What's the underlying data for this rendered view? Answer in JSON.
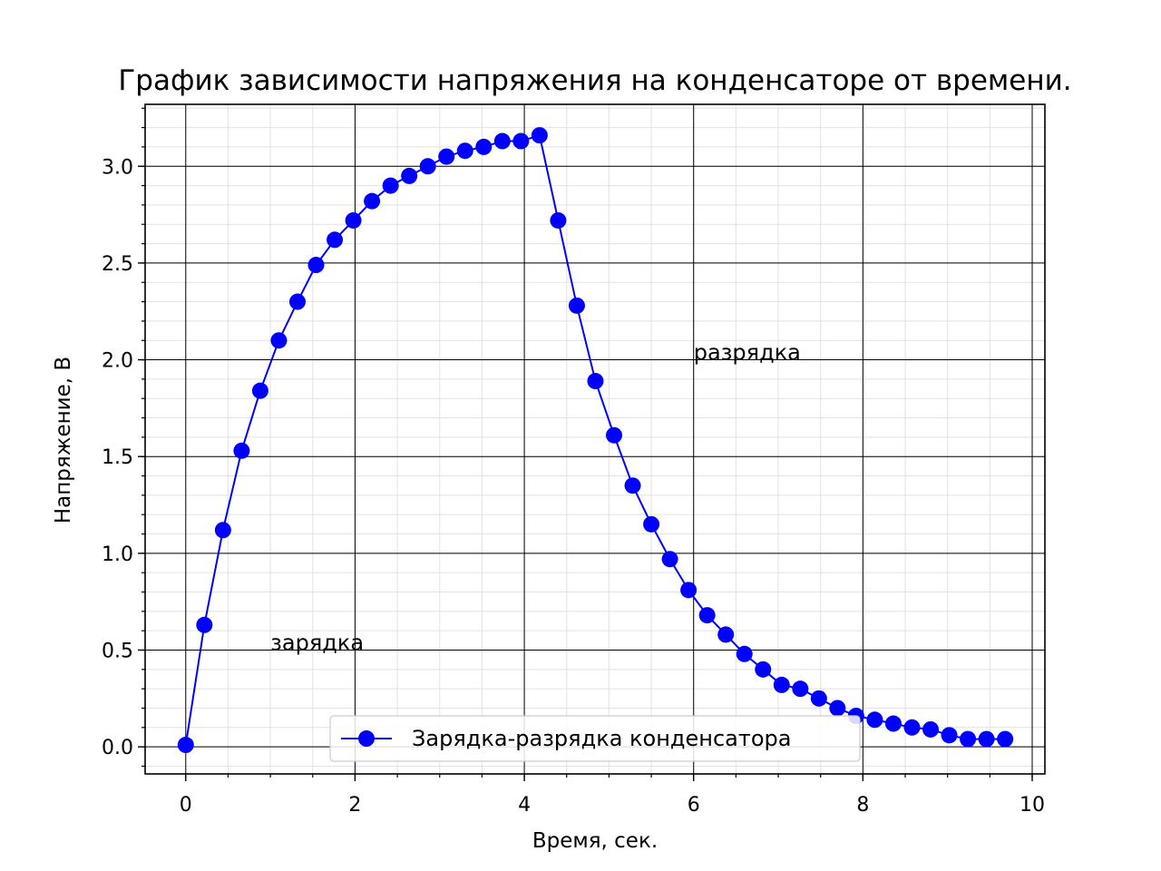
{
  "chart_data": {
    "type": "line",
    "title": "График зависимости напряжения на конденсаторе от времени.",
    "xlabel": "Время, сек.",
    "ylabel": "Напряжение, В",
    "xlim": [
      -0.48,
      10.15
    ],
    "ylim": [
      -0.14,
      3.32
    ],
    "xticks": [
      0,
      2,
      4,
      6,
      8,
      10
    ],
    "xtick_labels": [
      "0",
      "2",
      "4",
      "6",
      "8",
      "10"
    ],
    "yticks": [
      0.0,
      0.5,
      1.0,
      1.5,
      2.0,
      2.5,
      3.0
    ],
    "ytick_labels": [
      "0.0",
      "0.5",
      "1.0",
      "1.5",
      "2.0",
      "2.5",
      "3.0"
    ],
    "x_minor_step": 0.5,
    "y_minor_step": 0.1,
    "grid": {
      "major": true,
      "minor": true
    },
    "legend_position": "bottom-center",
    "series": [
      {
        "name": "Зарядка-разрядка конденсатора",
        "color": "#0000ff",
        "marker": "circle",
        "x": [
          0.0,
          0.22,
          0.44,
          0.66,
          0.88,
          1.1,
          1.32,
          1.54,
          1.76,
          1.98,
          2.2,
          2.42,
          2.64,
          2.86,
          3.08,
          3.3,
          3.52,
          3.74,
          3.96,
          4.18,
          4.4,
          4.62,
          4.84,
          5.06,
          5.28,
          5.5,
          5.72,
          5.94,
          6.16,
          6.38,
          6.6,
          6.82,
          7.04,
          7.26,
          7.48,
          7.7,
          7.92,
          8.14,
          8.36,
          8.58,
          8.8,
          9.02,
          9.24,
          9.46,
          9.68
        ],
        "y": [
          0.01,
          0.63,
          1.12,
          1.53,
          1.84,
          2.1,
          2.3,
          2.49,
          2.62,
          2.72,
          2.82,
          2.9,
          2.95,
          3.0,
          3.05,
          3.08,
          3.1,
          3.13,
          3.13,
          3.16,
          2.72,
          2.28,
          1.89,
          1.61,
          1.35,
          1.15,
          0.97,
          0.81,
          0.68,
          0.58,
          0.48,
          0.4,
          0.32,
          0.3,
          0.25,
          0.2,
          0.16,
          0.14,
          0.12,
          0.1,
          0.09,
          0.06,
          0.04,
          0.04,
          0.04
        ]
      }
    ],
    "annotations": [
      {
        "text": "зарядка",
        "x": 1.0,
        "y": 0.5
      },
      {
        "text": "разрядка",
        "x": 6.0,
        "y": 2.0
      }
    ]
  }
}
